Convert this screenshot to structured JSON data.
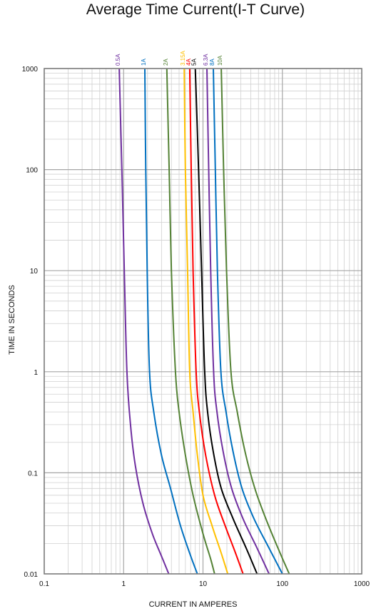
{
  "chart_data": {
    "type": "line",
    "title": "Average Time Current(I-T Curve)",
    "xlabel": "CURRENT IN AMPERES",
    "ylabel": "TIME IN SECONDS",
    "x_scale": "log",
    "y_scale": "log",
    "xlim": [
      0.1,
      1000
    ],
    "ylim": [
      0.01,
      1000
    ],
    "x_ticks": [
      "0.1",
      "1",
      "10",
      "100",
      "1000"
    ],
    "y_ticks": [
      "0.01",
      "0.1",
      "1",
      "10",
      "100",
      "1000"
    ],
    "grid": true,
    "series": [
      {
        "name": "0.5A",
        "color": "#7030a0",
        "points": [
          [
            0.88,
            1000
          ],
          [
            0.95,
            100
          ],
          [
            1.02,
            10
          ],
          [
            1.1,
            1
          ],
          [
            1.22,
            0.3
          ],
          [
            1.4,
            0.12
          ],
          [
            1.75,
            0.05
          ],
          [
            2.3,
            0.025
          ],
          [
            3.0,
            0.015
          ],
          [
            3.7,
            0.01
          ]
        ]
      },
      {
        "name": "1A",
        "color": "#0070c0",
        "points": [
          [
            1.85,
            1000
          ],
          [
            1.9,
            100
          ],
          [
            1.98,
            10
          ],
          [
            2.12,
            1
          ],
          [
            2.4,
            0.4
          ],
          [
            3.0,
            0.15
          ],
          [
            3.9,
            0.07
          ],
          [
            5.2,
            0.03
          ],
          [
            7.0,
            0.015
          ],
          [
            8.5,
            0.01
          ]
        ]
      },
      {
        "name": "2A",
        "color": "#548235",
        "points": [
          [
            3.5,
            1000
          ],
          [
            3.75,
            100
          ],
          [
            4.0,
            10
          ],
          [
            4.5,
            1
          ],
          [
            5.0,
            0.4
          ],
          [
            6.0,
            0.15
          ],
          [
            7.5,
            0.06
          ],
          [
            10.0,
            0.025
          ],
          [
            12.5,
            0.014
          ],
          [
            14.0,
            0.01
          ]
        ]
      },
      {
        "name": "3.15A",
        "color": "#ffc000",
        "points": [
          [
            5.8,
            1000
          ],
          [
            6.0,
            100
          ],
          [
            6.4,
            10
          ],
          [
            6.8,
            1
          ],
          [
            7.5,
            0.4
          ],
          [
            8.5,
            0.15
          ],
          [
            10.0,
            0.06
          ],
          [
            13.0,
            0.03
          ],
          [
            17.0,
            0.016
          ],
          [
            20.5,
            0.01
          ]
        ]
      },
      {
        "name": "4A",
        "color": "#ff0000",
        "points": [
          [
            6.8,
            1000
          ],
          [
            7.1,
            100
          ],
          [
            7.5,
            10
          ],
          [
            8.2,
            1
          ],
          [
            9.0,
            0.4
          ],
          [
            10.8,
            0.15
          ],
          [
            14.0,
            0.06
          ],
          [
            19.0,
            0.03
          ],
          [
            25.0,
            0.017
          ],
          [
            32.0,
            0.01
          ]
        ]
      },
      {
        "name": "5A",
        "color": "#000000",
        "points": [
          [
            8.0,
            1000
          ],
          [
            8.8,
            100
          ],
          [
            9.6,
            10
          ],
          [
            10.5,
            1
          ],
          [
            11.5,
            0.38
          ],
          [
            13.5,
            0.16
          ],
          [
            17.0,
            0.07
          ],
          [
            24.0,
            0.035
          ],
          [
            35.0,
            0.018
          ],
          [
            48.0,
            0.01
          ]
        ]
      },
      {
        "name": "6.3A",
        "color": "#7030a0",
        "points": [
          [
            11.2,
            1000
          ],
          [
            11.8,
            100
          ],
          [
            12.5,
            10
          ],
          [
            13.6,
            1
          ],
          [
            15.0,
            0.4
          ],
          [
            18.0,
            0.16
          ],
          [
            23.0,
            0.07
          ],
          [
            32.0,
            0.035
          ],
          [
            48.0,
            0.018
          ],
          [
            68.0,
            0.01
          ]
        ]
      },
      {
        "name": "8A",
        "color": "#0070c0",
        "points": [
          [
            13.5,
            1000
          ],
          [
            14.3,
            100
          ],
          [
            15.2,
            10
          ],
          [
            16.8,
            1
          ],
          [
            19.5,
            0.4
          ],
          [
            24.0,
            0.16
          ],
          [
            31.0,
            0.07
          ],
          [
            44.0,
            0.035
          ],
          [
            68.0,
            0.018
          ],
          [
            100.0,
            0.01
          ]
        ]
      },
      {
        "name": "10A",
        "color": "#548235",
        "points": [
          [
            17.0,
            1000
          ],
          [
            18.2,
            100
          ],
          [
            19.8,
            10
          ],
          [
            22.5,
            1
          ],
          [
            27.0,
            0.4
          ],
          [
            34.0,
            0.16
          ],
          [
            45.0,
            0.07
          ],
          [
            62.0,
            0.035
          ],
          [
            88.0,
            0.018
          ],
          [
            122.0,
            0.01
          ]
        ]
      }
    ]
  }
}
